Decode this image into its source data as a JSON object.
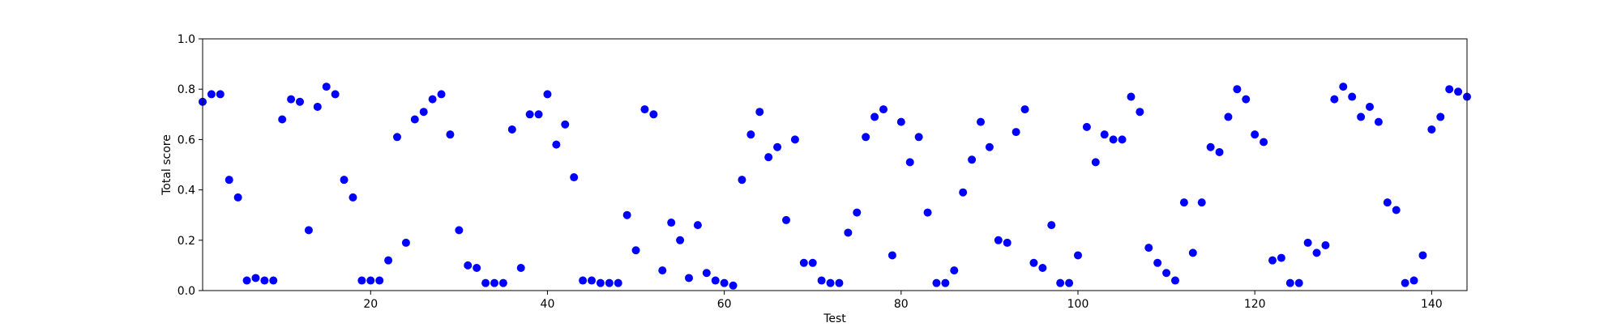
{
  "chart_data": {
    "type": "scatter",
    "title": "",
    "xlabel": "Test",
    "ylabel": "Total score",
    "xlim": [
      1,
      144
    ],
    "ylim": [
      0.0,
      1.0
    ],
    "xticks": [
      20,
      40,
      60,
      80,
      100,
      120,
      140
    ],
    "yticks": [
      0.0,
      0.2,
      0.4,
      0.6,
      0.8,
      1.0
    ],
    "xtick_labels": [
      "20",
      "40",
      "60",
      "80",
      "100",
      "120",
      "140"
    ],
    "ytick_labels": [
      "0.0",
      "0.2",
      "0.4",
      "0.6",
      "0.8",
      "1.0"
    ],
    "grid": false,
    "legend": "none",
    "marker_color": "#0000ff",
    "x": [
      1,
      2,
      3,
      4,
      5,
      6,
      7,
      8,
      9,
      10,
      11,
      12,
      13,
      14,
      15,
      16,
      17,
      18,
      19,
      20,
      21,
      22,
      23,
      24,
      25,
      26,
      27,
      28,
      29,
      30,
      31,
      32,
      33,
      34,
      35,
      36,
      37,
      38,
      39,
      40,
      41,
      42,
      43,
      44,
      45,
      46,
      47,
      48,
      49,
      50,
      51,
      52,
      53,
      54,
      55,
      56,
      57,
      58,
      59,
      60,
      61,
      62,
      63,
      64,
      65,
      66,
      67,
      68,
      69,
      70,
      71,
      72,
      73,
      74,
      75,
      76,
      77,
      78,
      79,
      80,
      81,
      82,
      83,
      84,
      85,
      86,
      87,
      88,
      89,
      90,
      91,
      92,
      93,
      94,
      95,
      96,
      97,
      98,
      99,
      100,
      101,
      102,
      103,
      104,
      105,
      106,
      107,
      108,
      109,
      110,
      111,
      112,
      113,
      114,
      115,
      116,
      117,
      118,
      119,
      120,
      121,
      122,
      123,
      124,
      125,
      126,
      127,
      128,
      129,
      130,
      131,
      132,
      133,
      134,
      135,
      136,
      137,
      138,
      139,
      140,
      141,
      142,
      143,
      144
    ],
    "y": [
      0.75,
      0.78,
      0.78,
      0.44,
      0.37,
      0.04,
      0.05,
      0.04,
      0.04,
      0.68,
      0.76,
      0.75,
      0.24,
      0.73,
      0.81,
      0.78,
      0.44,
      0.37,
      0.04,
      0.04,
      0.04,
      0.12,
      0.61,
      0.19,
      0.68,
      0.71,
      0.76,
      0.78,
      0.62,
      0.24,
      0.1,
      0.09,
      0.03,
      0.03,
      0.03,
      0.64,
      0.09,
      0.7,
      0.7,
      0.78,
      0.58,
      0.66,
      0.45,
      0.04,
      0.04,
      0.03,
      0.03,
      0.03,
      0.3,
      0.16,
      0.72,
      0.7,
      0.08,
      0.27,
      0.2,
      0.05,
      0.26,
      0.07,
      0.04,
      0.03,
      0.02,
      0.44,
      0.62,
      0.71,
      0.53,
      0.57,
      0.28,
      0.6,
      0.11,
      0.11,
      0.04,
      0.03,
      0.03,
      0.23,
      0.31,
      0.61,
      0.69,
      0.72,
      0.14,
      0.67,
      0.51,
      0.61,
      0.31,
      0.03,
      0.03,
      0.08,
      0.39,
      0.52,
      0.67,
      0.57,
      0.2,
      0.19,
      0.63,
      0.72,
      0.11,
      0.09,
      0.26,
      0.03,
      0.03,
      0.14,
      0.65,
      0.51,
      0.62,
      0.6,
      0.6,
      0.77,
      0.71,
      0.17,
      0.11,
      0.07,
      0.04,
      0.35,
      0.15,
      0.35,
      0.57,
      0.55,
      0.69,
      0.8,
      0.76,
      0.62,
      0.59,
      0.12,
      0.13,
      0.03,
      0.03,
      0.19,
      0.15,
      0.18,
      0.76,
      0.81,
      0.77,
      0.69,
      0.73,
      0.67,
      0.35,
      0.32,
      0.03,
      0.04,
      0.14,
      0.64,
      0.69,
      0.8,
      0.79,
      0.77
    ]
  }
}
